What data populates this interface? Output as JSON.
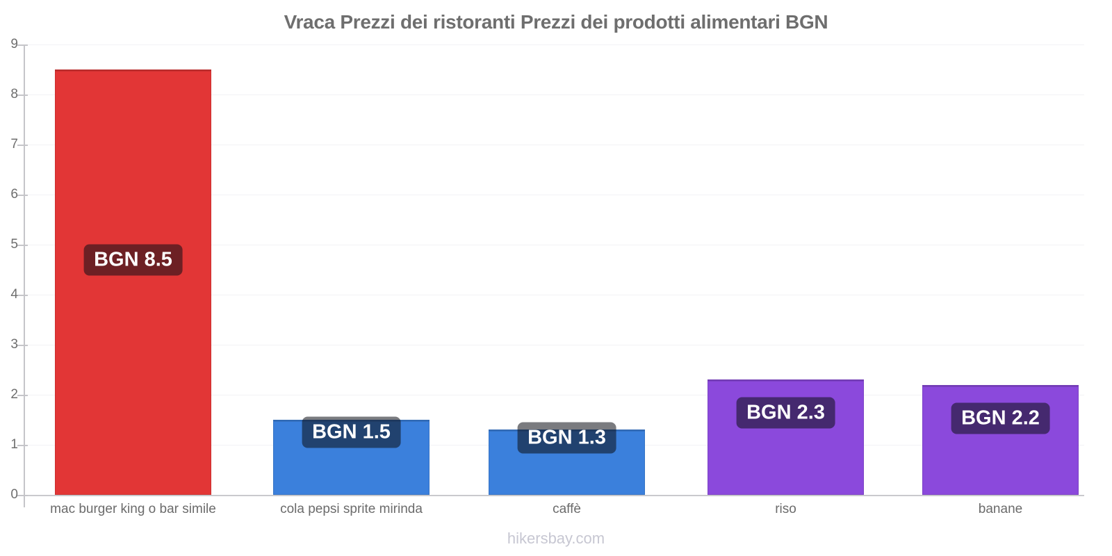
{
  "page": {
    "title": "Vraca Prezzi dei ristoranti Prezzi dei prodotti alimentari BGN",
    "watermark": "hikersbay.com"
  },
  "chart_data": {
    "type": "bar",
    "title": "Vraca Prezzi dei ristoranti Prezzi dei prodotti alimentari BGN",
    "currency": "BGN",
    "categories": [
      "mac burger king o bar simile",
      "cola pepsi sprite mirinda",
      "caffè",
      "riso",
      "banane"
    ],
    "values": [
      8.5,
      1.5,
      1.3,
      2.3,
      2.2
    ],
    "bar_labels": [
      "BGN 8.5",
      "BGN 1.5",
      "BGN 1.3",
      "BGN 2.3",
      "BGN 2.2"
    ],
    "bar_colors": [
      "#e23636",
      "#3b80dc",
      "#3b80dc",
      "#8b49dc",
      "#8b49dc"
    ],
    "badge_color": "rgba(12,15,22,0.55)",
    "xlabel": "",
    "ylabel": "",
    "ylim": [
      0,
      9
    ],
    "yticks": [
      0,
      1,
      2,
      3,
      4,
      5,
      6,
      7,
      8,
      9
    ],
    "legend": "none",
    "grid": "horizontal-faint",
    "watermark": "hikersbay.com"
  }
}
